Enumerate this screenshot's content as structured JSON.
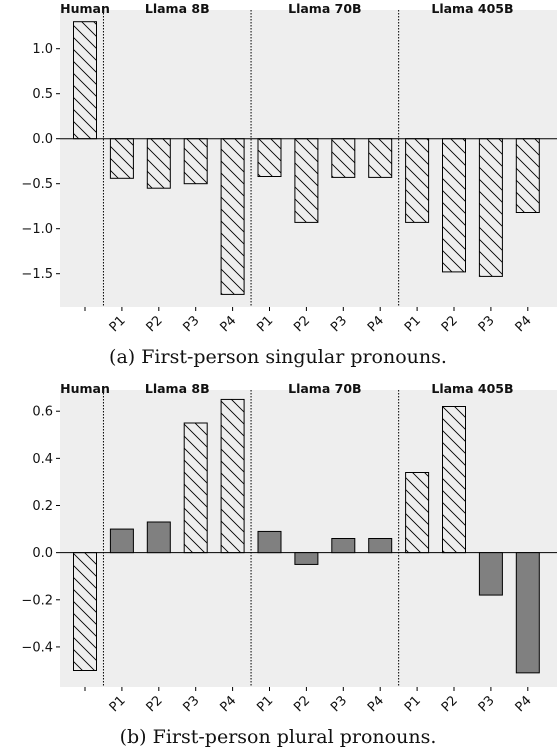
{
  "colors": {
    "panel_bg": "#eeeeee",
    "axis": "#000000",
    "hatched_fill": "#ffffff",
    "solid_fill": "#808080"
  },
  "chart_data": [
    {
      "type": "bar",
      "caption": "(a) First-person singular pronouns.",
      "groups": [
        "Human",
        "Llama 8B",
        "Llama 70B",
        "Llama 405B"
      ],
      "categories": [
        "",
        "P1",
        "P2",
        "P3",
        "P4",
        "P1",
        "P2",
        "P3",
        "P4",
        "P1",
        "P2",
        "P3",
        "P4"
      ],
      "values": [
        1.3,
        -0.44,
        -0.55,
        -0.5,
        -1.73,
        -0.42,
        -0.93,
        -0.43,
        -0.43,
        -0.93,
        -1.48,
        -1.53,
        -0.82
      ],
      "hatched": [
        true,
        true,
        true,
        true,
        true,
        true,
        true,
        true,
        true,
        true,
        true,
        true,
        true
      ],
      "yticks": [
        1.0,
        0.5,
        0.0,
        -0.5,
        -1.0,
        -1.5
      ],
      "ytick_labels": [
        "1.0",
        "0.5",
        "0.0",
        "−0.5",
        "−1.0",
        "−1.5"
      ],
      "ylim": [
        -1.87,
        1.43
      ],
      "grid": false
    },
    {
      "type": "bar",
      "caption": "(b) First-person plural pronouns.",
      "groups": [
        "Human",
        "Llama 8B",
        "Llama 70B",
        "Llama 405B"
      ],
      "categories": [
        "",
        "P1",
        "P2",
        "P3",
        "P4",
        "P1",
        "P2",
        "P3",
        "P4",
        "P1",
        "P2",
        "P3",
        "P4"
      ],
      "values": [
        -0.5,
        0.1,
        0.13,
        0.55,
        0.65,
        0.09,
        -0.05,
        0.06,
        0.06,
        0.34,
        0.62,
        -0.18,
        -0.51
      ],
      "hatched": [
        true,
        false,
        false,
        true,
        true,
        false,
        false,
        false,
        false,
        true,
        true,
        false,
        false
      ],
      "yticks": [
        0.6,
        0.4,
        0.2,
        0.0,
        -0.2,
        -0.4
      ],
      "ytick_labels": [
        "0.6",
        "0.4",
        "0.2",
        "0.0",
        "−0.2",
        "−0.4"
      ],
      "ylim": [
        -0.57,
        0.69
      ],
      "grid": false
    }
  ]
}
